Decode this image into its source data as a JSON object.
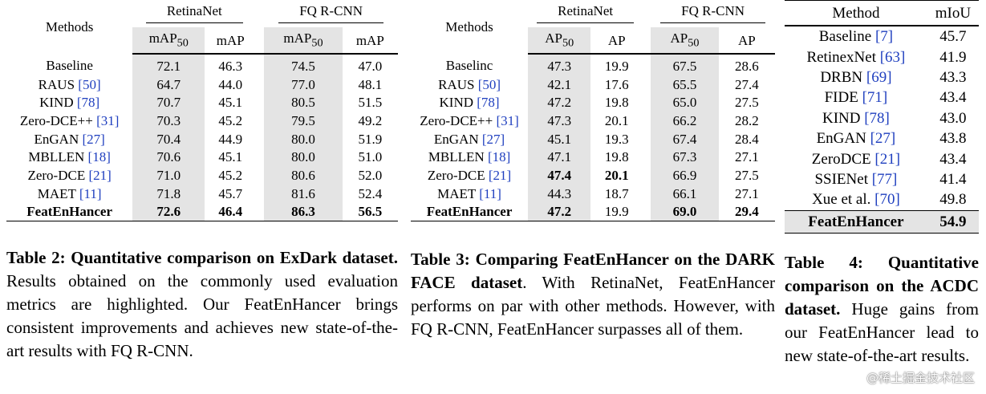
{
  "table2": {
    "col_methods": "Methods",
    "group_a": "RetinaNet",
    "group_b": "FQ R-CNN",
    "metric1": "mAP",
    "metric1_sub": "50",
    "metric2": "mAP",
    "rows": [
      {
        "name": "Baseline",
        "ref": "",
        "v": [
          "72.1",
          "46.3",
          "74.5",
          "47.0"
        ],
        "bold": [
          false,
          false,
          false,
          false
        ]
      },
      {
        "name": "RAUS",
        "ref": "[50]",
        "v": [
          "64.7",
          "44.0",
          "77.0",
          "48.1"
        ],
        "bold": [
          false,
          false,
          false,
          false
        ]
      },
      {
        "name": "KIND",
        "ref": "[78]",
        "v": [
          "70.7",
          "45.1",
          "80.5",
          "51.5"
        ],
        "bold": [
          false,
          false,
          false,
          false
        ]
      },
      {
        "name": "Zero-DCE++",
        "ref": "[31]",
        "v": [
          "70.3",
          "45.2",
          "79.5",
          "49.2"
        ],
        "bold": [
          false,
          false,
          false,
          false
        ]
      },
      {
        "name": "EnGAN",
        "ref": "[27]",
        "v": [
          "70.4",
          "44.9",
          "80.0",
          "51.9"
        ],
        "bold": [
          false,
          false,
          false,
          false
        ]
      },
      {
        "name": "MBLLEN",
        "ref": "[18]",
        "v": [
          "70.6",
          "45.1",
          "80.0",
          "51.0"
        ],
        "bold": [
          false,
          false,
          false,
          false
        ]
      },
      {
        "name": "Zero-DCE",
        "ref": "[21]",
        "v": [
          "71.0",
          "45.2",
          "80.6",
          "52.0"
        ],
        "bold": [
          false,
          false,
          false,
          false
        ]
      },
      {
        "name": "MAET",
        "ref": "[11]",
        "v": [
          "71.8",
          "45.7",
          "81.6",
          "52.4"
        ],
        "bold": [
          false,
          false,
          false,
          false
        ]
      },
      {
        "name": "FeatEnHancer",
        "ref": "",
        "v": [
          "72.6",
          "46.4",
          "86.3",
          "56.5"
        ],
        "bold": [
          true,
          true,
          true,
          true
        ]
      }
    ],
    "caption_title": "Table 2: Quantitative comparison on ExDark dataset.",
    "caption_body": " Results obtained on the commonly used evaluation metrics are highlighted. Our FeatEnHancer brings consistent improvements and achieves new state-of-the-art results with FQ R-CNN."
  },
  "table3": {
    "col_methods": "Methods",
    "group_a": "RetinaNet",
    "group_b": "FQ R-CNN",
    "metric1": "AP",
    "metric1_sub": "50",
    "metric2": "AP",
    "rows": [
      {
        "name": "Baselinc",
        "ref": "",
        "v": [
          "47.3",
          "19.9",
          "67.5",
          "28.6"
        ],
        "bold": [
          false,
          false,
          false,
          false
        ]
      },
      {
        "name": "RAUS",
        "ref": "[50]",
        "v": [
          "42.1",
          "17.6",
          "65.5",
          "27.4"
        ],
        "bold": [
          false,
          false,
          false,
          false
        ]
      },
      {
        "name": "KIND",
        "ref": "[78]",
        "v": [
          "47.2",
          "19.8",
          "65.0",
          "27.5"
        ],
        "bold": [
          false,
          false,
          false,
          false
        ]
      },
      {
        "name": "Zero-DCE++",
        "ref": "[31]",
        "v": [
          "47.3",
          "20.1",
          "66.2",
          "28.2"
        ],
        "bold": [
          false,
          false,
          false,
          false
        ]
      },
      {
        "name": "EnGAN",
        "ref": "[27]",
        "v": [
          "45.1",
          "19.3",
          "67.4",
          "28.4"
        ],
        "bold": [
          false,
          false,
          false,
          false
        ]
      },
      {
        "name": "MBLLEN",
        "ref": "[18]",
        "v": [
          "47.1",
          "19.8",
          "67.3",
          "27.1"
        ],
        "bold": [
          false,
          false,
          false,
          false
        ]
      },
      {
        "name": "Zero-DCE",
        "ref": "[21]",
        "v": [
          "47.4",
          "20.1",
          "66.9",
          "27.5"
        ],
        "bold": [
          true,
          true,
          false,
          false
        ]
      },
      {
        "name": "MAET",
        "ref": "[11]",
        "v": [
          "44.3",
          "18.7",
          "66.1",
          "27.1"
        ],
        "bold": [
          false,
          false,
          false,
          false
        ]
      },
      {
        "name": "FeatEnHancer",
        "ref": "",
        "v": [
          "47.2",
          "19.9",
          "69.0",
          "29.4"
        ],
        "bold": [
          true,
          false,
          true,
          true
        ]
      }
    ],
    "caption_title": "Table 3: Comparing FeatEnHancer on the DARK FACE dataset",
    "caption_body": ". With RetinaNet, FeatEnHancer performs on par with other methods. However, with FQ R-CNN, FeatEnHancer surpasses all of them."
  },
  "table4": {
    "col_method": "Method",
    "col_miou": "mIoU",
    "rows": [
      {
        "name": "Baseline",
        "ref": "[7]",
        "v": "45.7"
      },
      {
        "name": "RetinexNet",
        "ref": "[63]",
        "v": "41.9"
      },
      {
        "name": "DRBN",
        "ref": "[69]",
        "v": "43.3"
      },
      {
        "name": "FIDE",
        "ref": "[71]",
        "v": "43.4"
      },
      {
        "name": "KIND",
        "ref": "[78]",
        "v": "43.0"
      },
      {
        "name": "EnGAN",
        "ref": "[27]",
        "v": "43.8"
      },
      {
        "name": "ZeroDCE",
        "ref": "[21]",
        "v": "43.4"
      },
      {
        "name": "SSIENet",
        "ref": "[77]",
        "v": "41.4"
      },
      {
        "name": "Xue et al.",
        "ref": "[70]",
        "v": "49.8"
      }
    ],
    "last_row": {
      "name": "FeatEnHancer",
      "v": "54.9"
    },
    "caption_title": "Table 4: Quantitative comparison on the ACDC dataset.",
    "caption_body": " Huge gains from our FeatEnHancer lead to new state-of-the-art results."
  },
  "watermark": "@稀土掘金技术社区"
}
